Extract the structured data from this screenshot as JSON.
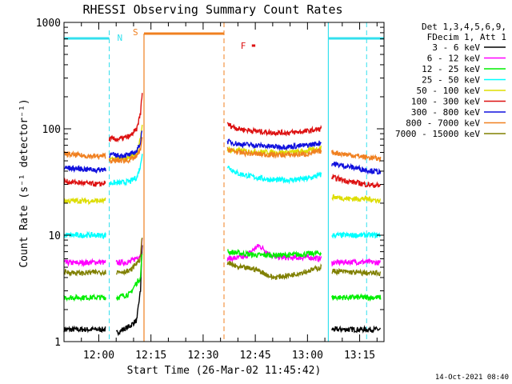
{
  "chart_data": {
    "type": "line",
    "title": "RHESSI Observing Summary Count Rates",
    "xlabel": "Start Time (26-Mar-02 11:45:42)",
    "ylabel": "Count Rate (s⁻¹ detector⁻¹)",
    "y_scale": "log",
    "ylim": [
      1,
      1000
    ],
    "xlim": [
      "11:50",
      "13:22"
    ],
    "x_ticks": [
      "12:00",
      "12:15",
      "12:30",
      "12:45",
      "13:00",
      "13:15"
    ],
    "y_ticks": [
      {
        "value": 1,
        "label": "1"
      },
      {
        "value": 10,
        "label": "10"
      },
      {
        "value": 100,
        "label": "100"
      },
      {
        "value": 1000,
        "label": "1000"
      }
    ],
    "legend_header": [
      "Det 1,3,4,5,6,9,",
      "FDecim 1, Att 1"
    ],
    "legend_placement": "right",
    "timestamp": "14-Oct-2021 08:40",
    "flags": [
      {
        "label": "N",
        "color": "#33e0ee",
        "times": [
          "12:03",
          "13:06"
        ]
      },
      {
        "label": "S",
        "color": "#f08020",
        "times": [
          "12:13",
          "12:36"
        ]
      },
      {
        "label": "F",
        "color": "#dd1111",
        "times": [
          "12:44",
          "12:45"
        ]
      }
    ],
    "series": [
      {
        "name": "3 - 6 keV",
        "color": "#000000",
        "segments": [
          {
            "x": [
              "11:50",
              "11:55",
              "12:00",
              "12:02"
            ],
            "y": [
              1.3,
              1.3,
              1.3,
              1.3
            ]
          },
          {
            "x": [
              "12:05",
              "12:09",
              "12:11",
              "12:12",
              "12:12.5"
            ],
            "y": [
              1.2,
              1.4,
              1.6,
              3,
              8
            ]
          },
          {
            "x": [
              "13:07",
              "13:12",
              "13:17",
              "13:21"
            ],
            "y": [
              1.3,
              1.3,
              1.3,
              1.3
            ]
          }
        ]
      },
      {
        "name": "6 - 12 keV",
        "color": "#ff00ff",
        "segments": [
          {
            "x": [
              "11:50",
              "11:55",
              "12:00",
              "12:02"
            ],
            "y": [
              5.5,
              5.5,
              5.6,
              5.5
            ]
          },
          {
            "x": [
              "12:05",
              "12:09",
              "12:12",
              "12:12.5"
            ],
            "y": [
              5.5,
              5.6,
              6.5,
              9
            ]
          },
          {
            "x": [
              "12:37",
              "12:42",
              "12:46",
              "12:50",
              "12:55",
              "13:00",
              "13:04"
            ],
            "y": [
              6,
              6.2,
              8,
              6.3,
              6.1,
              6.2,
              6
            ]
          },
          {
            "x": [
              "13:07",
              "13:12",
              "13:17",
              "13:21"
            ],
            "y": [
              5.5,
              5.6,
              5.6,
              5.5
            ]
          }
        ]
      },
      {
        "name": "12 - 25 keV",
        "color": "#00ee00",
        "segments": [
          {
            "x": [
              "11:50",
              "11:55",
              "12:00",
              "12:02"
            ],
            "y": [
              2.6,
              2.6,
              2.6,
              2.6
            ]
          },
          {
            "x": [
              "12:05",
              "12:09",
              "12:12",
              "12:12.5"
            ],
            "y": [
              2.6,
              2.8,
              4,
              7
            ]
          },
          {
            "x": [
              "12:37",
              "12:45",
              "12:55",
              "13:04"
            ],
            "y": [
              7,
              6.5,
              6.5,
              6.8
            ]
          },
          {
            "x": [
              "13:07",
              "13:12",
              "13:17",
              "13:21"
            ],
            "y": [
              2.6,
              2.6,
              2.6,
              2.6
            ]
          }
        ]
      },
      {
        "name": "25 - 50 keV",
        "color": "#00ffff",
        "segments": [
          {
            "x": [
              "11:50",
              "11:55",
              "12:00",
              "12:02"
            ],
            "y": [
              10,
              10,
              10,
              10
            ]
          },
          {
            "x": [
              "12:03",
              "12:06",
              "12:09",
              "12:11",
              "12:12",
              "12:12.5"
            ],
            "y": [
              31,
              31,
              32,
              35,
              45,
              60
            ]
          },
          {
            "x": [
              "12:37",
              "12:40",
              "12:45",
              "12:50",
              "12:55",
              "13:00",
              "13:04"
            ],
            "y": [
              44,
              38,
              35,
              33,
              33,
              34,
              37
            ]
          },
          {
            "x": [
              "13:07",
              "13:12",
              "13:17",
              "13:21"
            ],
            "y": [
              10,
              10,
              10,
              10
            ]
          }
        ]
      },
      {
        "name": "50 - 100 keV",
        "color": "#dddd00",
        "segments": [
          {
            "x": [
              "11:50",
              "11:55",
              "12:00",
              "12:02"
            ],
            "y": [
              21,
              21,
              21,
              21
            ]
          },
          {
            "x": [
              "12:03",
              "12:06",
              "12:09",
              "12:11",
              "12:12",
              "12:12.5"
            ],
            "y": [
              52,
              52,
              54,
              60,
              80,
              110
            ]
          },
          {
            "x": [
              "12:37",
              "12:40",
              "12:45",
              "12:50",
              "12:55",
              "13:00",
              "13:04"
            ],
            "y": [
              64,
              62,
              61,
              60,
              60,
              62,
              66
            ]
          },
          {
            "x": [
              "13:07",
              "13:12",
              "13:17",
              "13:21"
            ],
            "y": [
              23,
              22,
              22,
              21
            ]
          }
        ]
      },
      {
        "name": "100 - 300 keV",
        "color": "#dd1111",
        "segments": [
          {
            "x": [
              "11:50",
              "11:55",
              "12:00",
              "12:02"
            ],
            "y": [
              32,
              31,
              30,
              31
            ]
          },
          {
            "x": [
              "12:03",
              "12:06",
              "12:09",
              "12:11",
              "12:12",
              "12:12.5"
            ],
            "y": [
              80,
              80,
              85,
              100,
              140,
              220
            ]
          },
          {
            "x": [
              "12:37",
              "12:40",
              "12:45",
              "12:50",
              "12:55",
              "13:00",
              "13:04"
            ],
            "y": [
              110,
              100,
              95,
              92,
              92,
              95,
              100
            ]
          },
          {
            "x": [
              "13:07",
              "13:12",
              "13:17",
              "13:21"
            ],
            "y": [
              35,
              32,
              30,
              29
            ]
          }
        ]
      },
      {
        "name": "300 - 800 keV",
        "color": "#1010dd",
        "segments": [
          {
            "x": [
              "11:50",
              "11:55",
              "12:00",
              "12:02"
            ],
            "y": [
              43,
              42,
              41,
              42
            ]
          },
          {
            "x": [
              "12:03",
              "12:06",
              "12:09",
              "12:11",
              "12:12",
              "12:12.5"
            ],
            "y": [
              57,
              56,
              57,
              62,
              75,
              100
            ]
          },
          {
            "x": [
              "12:37",
              "12:40",
              "12:45",
              "12:50",
              "12:55",
              "13:00",
              "13:04"
            ],
            "y": [
              76,
              72,
              70,
              68,
              68,
              70,
              74
            ]
          },
          {
            "x": [
              "13:07",
              "13:12",
              "13:17",
              "13:21"
            ],
            "y": [
              47,
              44,
              41,
              39
            ]
          }
        ]
      },
      {
        "name": "800 - 7000 keV",
        "color": "#f08020",
        "segments": [
          {
            "x": [
              "11:50",
              "11:55",
              "12:00",
              "12:02"
            ],
            "y": [
              58,
              56,
              55,
              56
            ]
          },
          {
            "x": [
              "12:03",
              "12:06",
              "12:09",
              "12:11",
              "12:12",
              "12:12.5"
            ],
            "y": [
              50,
              50,
              51,
              55,
              65,
              80
            ]
          },
          {
            "x": [
              "12:37",
              "12:40",
              "12:45",
              "12:50",
              "12:55",
              "13:00",
              "13:04"
            ],
            "y": [
              64,
              60,
              58,
              57,
              57,
              58,
              62
            ]
          },
          {
            "x": [
              "13:07",
              "13:12",
              "13:17",
              "13:21"
            ],
            "y": [
              60,
              57,
              54,
              52
            ]
          }
        ]
      },
      {
        "name": "7000 - 15000 keV",
        "color": "#808000",
        "segments": [
          {
            "x": [
              "11:50",
              "11:55",
              "12:00",
              "12:02"
            ],
            "y": [
              4.5,
              4.4,
              4.5,
              4.5
            ]
          },
          {
            "x": [
              "12:05",
              "12:09",
              "12:12",
              "12:12.5"
            ],
            "y": [
              4.5,
              4.6,
              6,
              10
            ]
          },
          {
            "x": [
              "12:37",
              "12:40",
              "12:45",
              "12:50",
              "12:55",
              "13:00",
              "13:04"
            ],
            "y": [
              5.5,
              5,
              4.8,
              4,
              4.2,
              4.6,
              5
            ]
          },
          {
            "x": [
              "13:07",
              "13:12",
              "13:17",
              "13:21"
            ],
            "y": [
              4.6,
              4.5,
              4.4,
              4.4
            ]
          }
        ]
      }
    ]
  }
}
